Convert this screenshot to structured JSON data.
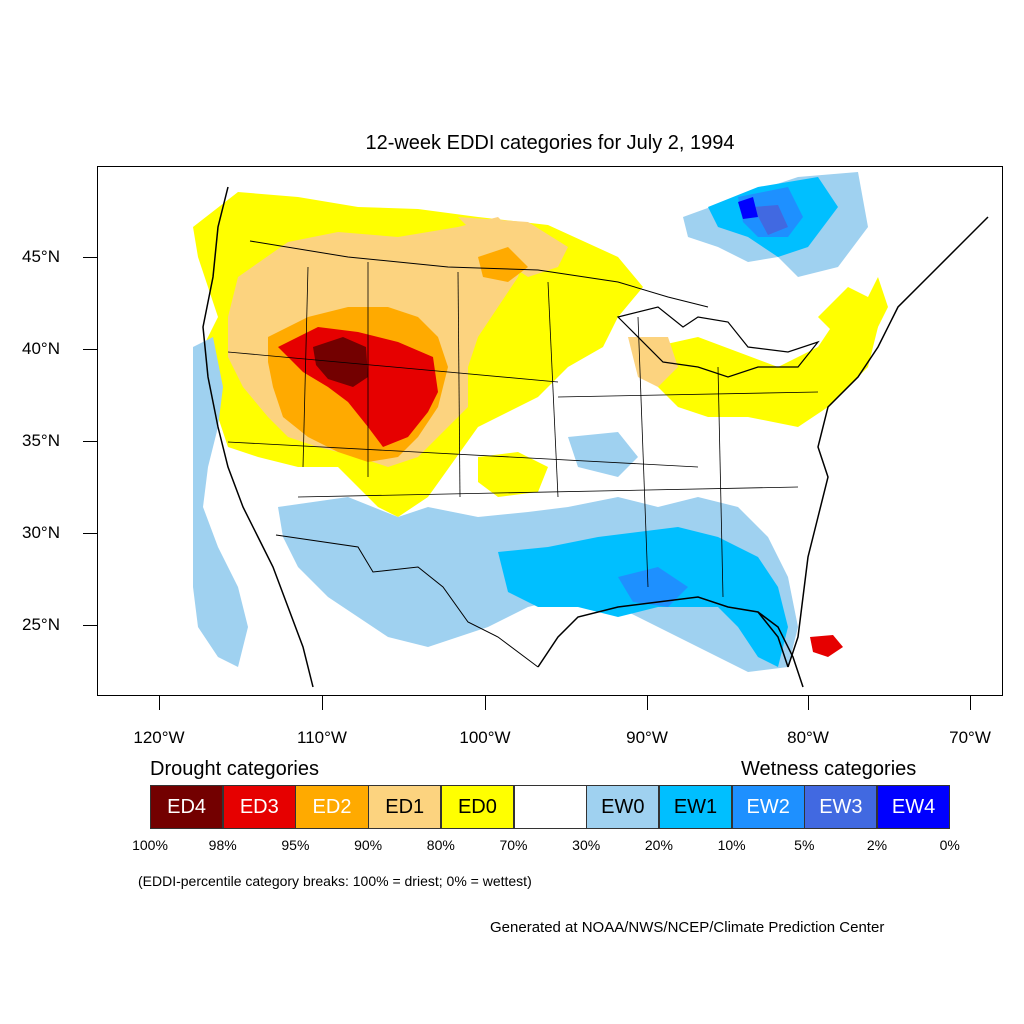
{
  "title": "12-week EDDI categories for July 2, 1994",
  "map": {
    "lat_labels": [
      "45°N",
      "40°N",
      "35°N",
      "30°N",
      "25°N"
    ],
    "lon_labels": [
      "120°W",
      "110°W",
      "100°W",
      "90°W",
      "80°W",
      "70°W"
    ]
  },
  "legend": {
    "drought_heading": "Drought categories",
    "wetness_heading": "Wetness categories",
    "categories": [
      {
        "label": "ED4",
        "color": "#730000",
        "text_color": "#ffffff"
      },
      {
        "label": "ED3",
        "color": "#e60000",
        "text_color": "#ffffff"
      },
      {
        "label": "ED2",
        "color": "#ffaa00",
        "text_color": "#ffffff"
      },
      {
        "label": "ED1",
        "color": "#fcd37f",
        "text_color": "#000000"
      },
      {
        "label": "ED0",
        "color": "#ffff00",
        "text_color": "#000000"
      },
      {
        "label": "",
        "color": "#ffffff",
        "text_color": "#000000"
      },
      {
        "label": "EW0",
        "color": "#9fd1f0",
        "text_color": "#000000"
      },
      {
        "label": "EW1",
        "color": "#00bfff",
        "text_color": "#000000"
      },
      {
        "label": "EW2",
        "color": "#1e90ff",
        "text_color": "#ffffff"
      },
      {
        "label": "EW3",
        "color": "#4169e1",
        "text_color": "#ffffff"
      },
      {
        "label": "EW4",
        "color": "#0000ff",
        "text_color": "#ffffff"
      }
    ],
    "percent_breaks": [
      "100%",
      "98%",
      "95%",
      "90%",
      "80%",
      "70%",
      "30%",
      "20%",
      "10%",
      "5%",
      "2%",
      "0%"
    ],
    "note": "(EDDI-percentile category breaks: 100% = driest; 0% = wettest)"
  },
  "credit": "Generated at NOAA/NWS/NCEP/Climate Prediction Center"
}
